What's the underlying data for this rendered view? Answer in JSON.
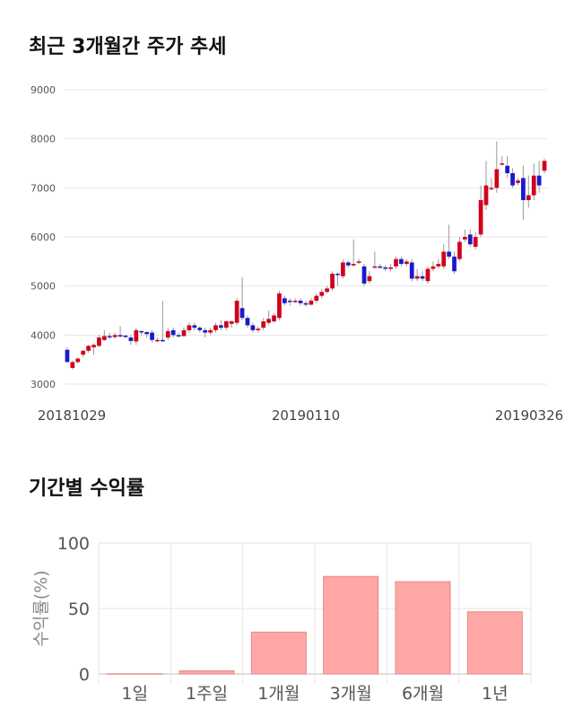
{
  "sections": {
    "price_title": "최근 3개월간 주가 추세",
    "return_title": "기간별 수익률"
  },
  "chart_data": [
    {
      "type": "candlestick",
      "title": "최근 3개월간 주가 추세",
      "ylim": [
        3000,
        9000
      ],
      "y_ticks": [
        3000,
        4000,
        5000,
        6000,
        7000,
        8000,
        9000
      ],
      "x_tick_labels": [
        "20181029",
        "20190110",
        "20190326"
      ],
      "grid": true,
      "up_color": "#d0021b",
      "down_color": "#1a1acc",
      "candles": [
        [
          3700,
          3450,
          3750,
          3450
        ],
        [
          3330,
          3450,
          3480,
          3300
        ],
        [
          3450,
          3520,
          3550,
          3420
        ],
        [
          3600,
          3680,
          3700,
          3550
        ],
        [
          3680,
          3780,
          3800,
          3640
        ],
        [
          3750,
          3800,
          3830,
          3600
        ],
        [
          3780,
          3950,
          4000,
          3750
        ],
        [
          3900,
          3980,
          4100,
          3880
        ],
        [
          3980,
          3960,
          4050,
          3920
        ],
        [
          3960,
          4000,
          4050,
          3930
        ],
        [
          4000,
          3980,
          4180,
          3950
        ],
        [
          3990,
          3960,
          4000,
          3940
        ],
        [
          3950,
          3880,
          4000,
          3800
        ],
        [
          3870,
          4100,
          4150,
          3800
        ],
        [
          4080,
          4060,
          4100,
          3990
        ],
        [
          4060,
          4020,
          4080,
          3950
        ],
        [
          4050,
          3900,
          4100,
          3850
        ],
        [
          3890,
          3900,
          3950,
          3850
        ],
        [
          3900,
          3890,
          4700,
          3860
        ],
        [
          3950,
          4080,
          4150,
          3900
        ],
        [
          4100,
          4000,
          4150,
          3950
        ],
        [
          4000,
          3990,
          4050,
          3950
        ],
        [
          3980,
          4100,
          4150,
          3970
        ],
        [
          4100,
          4200,
          4250,
          4050
        ],
        [
          4200,
          4150,
          4250,
          4100
        ],
        [
          4150,
          4100,
          4180,
          4050
        ],
        [
          4100,
          4050,
          4150,
          3950
        ],
        [
          4050,
          4100,
          4150,
          4000
        ],
        [
          4100,
          4200,
          4250,
          4050
        ],
        [
          4200,
          4150,
          4300,
          4100
        ],
        [
          4150,
          4280,
          4300,
          4100
        ],
        [
          4230,
          4280,
          4300,
          4150
        ],
        [
          4250,
          4700,
          4750,
          4200
        ],
        [
          4550,
          4350,
          5180,
          4300
        ],
        [
          4350,
          4200,
          4400,
          4150
        ],
        [
          4200,
          4100,
          4250,
          4050
        ],
        [
          4100,
          4130,
          4180,
          4050
        ],
        [
          4150,
          4280,
          4350,
          4100
        ],
        [
          4250,
          4330,
          4500,
          4200
        ],
        [
          4280,
          4400,
          4450,
          4250
        ],
        [
          4350,
          4850,
          4900,
          4300
        ],
        [
          4750,
          4650,
          4800,
          4600
        ],
        [
          4700,
          4680,
          4750,
          4600
        ],
        [
          4680,
          4700,
          4750,
          4650
        ],
        [
          4700,
          4650,
          4750,
          4600
        ],
        [
          4650,
          4620,
          4700,
          4580
        ],
        [
          4620,
          4700,
          4750,
          4600
        ],
        [
          4700,
          4800,
          4850,
          4650
        ],
        [
          4800,
          4880,
          4950,
          4750
        ],
        [
          4880,
          4950,
          5000,
          4850
        ],
        [
          4950,
          5250,
          5300,
          4900
        ],
        [
          5250,
          5230,
          5280,
          5000
        ],
        [
          5200,
          5480,
          5550,
          5150
        ],
        [
          5480,
          5420,
          5520,
          5380
        ],
        [
          5420,
          5450,
          5950,
          5400
        ],
        [
          5500,
          5500,
          5550,
          5450
        ],
        [
          5400,
          5050,
          5450,
          5000
        ],
        [
          5100,
          5200,
          5300,
          5050
        ],
        [
          5380,
          5400,
          5700,
          5350
        ],
        [
          5400,
          5380,
          5450,
          5350
        ],
        [
          5380,
          5350,
          5420,
          5300
        ],
        [
          5350,
          5380,
          5450,
          5300
        ],
        [
          5400,
          5550,
          5600,
          5350
        ],
        [
          5550,
          5450,
          5600,
          5400
        ],
        [
          5450,
          5500,
          5550,
          5400
        ],
        [
          5480,
          5150,
          5550,
          5100
        ],
        [
          5150,
          5200,
          5350,
          5100
        ],
        [
          5200,
          5150,
          5300,
          5100
        ],
        [
          5100,
          5350,
          5400,
          5050
        ],
        [
          5350,
          5400,
          5500,
          5300
        ],
        [
          5400,
          5450,
          5550,
          5350
        ],
        [
          5400,
          5700,
          5850,
          5350
        ],
        [
          5700,
          5600,
          6250,
          5550
        ],
        [
          5600,
          5300,
          5700,
          5250
        ],
        [
          5550,
          5900,
          6000,
          5500
        ],
        [
          5950,
          6000,
          6150,
          5900
        ],
        [
          6050,
          5850,
          6150,
          5800
        ],
        [
          5800,
          6000,
          6100,
          5750
        ],
        [
          6050,
          6750,
          7050,
          6000
        ],
        [
          6650,
          7050,
          7550,
          6550
        ],
        [
          7000,
          7000,
          7200,
          6950
        ],
        [
          7000,
          7380,
          7950,
          6900
        ],
        [
          7500,
          7500,
          7650,
          7450
        ],
        [
          7450,
          7300,
          7650,
          7200
        ],
        [
          7300,
          7050,
          7400,
          7000
        ],
        [
          7100,
          7150,
          7200,
          7050
        ],
        [
          7200,
          6750,
          7450,
          6350
        ],
        [
          6750,
          6850,
          7250,
          6600
        ],
        [
          6850,
          7250,
          7500,
          6750
        ],
        [
          7250,
          7050,
          7550,
          6900
        ],
        [
          7350,
          7550,
          7600,
          7300
        ]
      ]
    },
    {
      "type": "bar",
      "title": "기간별 수익률",
      "ylabel": "수익률(%)",
      "ylim": [
        0,
        100
      ],
      "y_ticks": [
        0,
        50,
        100
      ],
      "categories": [
        "1일",
        "1주일",
        "1개월",
        "3개월",
        "6개월",
        "1년"
      ],
      "values": [
        0.2,
        2.5,
        32,
        74.5,
        70.5,
        47.5
      ],
      "bar_color": "#ffa6a6",
      "bar_edge": "#e58a8a",
      "grid": true
    }
  ]
}
